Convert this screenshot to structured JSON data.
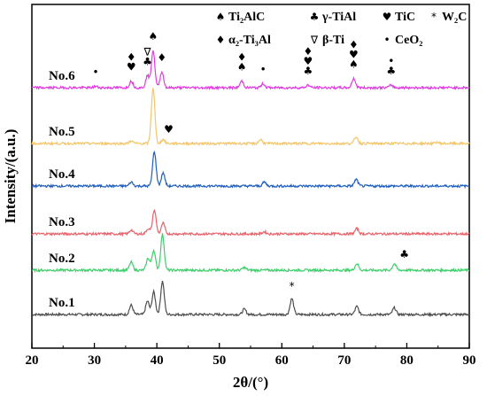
{
  "chart_data": {
    "type": "line",
    "xlabel": "2θ/(°)",
    "ylabel": "Intensity/(a.u.)",
    "xlim": [
      20,
      90
    ],
    "xticks": [
      "20",
      "30",
      "40",
      "50",
      "60",
      "70",
      "80",
      "90"
    ],
    "legend": {
      "placement": "top-right",
      "entries": [
        {
          "symbol": "♠",
          "label": "Ti₂AlC"
        },
        {
          "symbol": "♣",
          "label": "γ-TiAl"
        },
        {
          "symbol": "♥",
          "label": "TiC"
        },
        {
          "symbol": "*",
          "label": "W₂C"
        },
        {
          "symbol": "♦",
          "label": "α₂-Ti₃Al"
        },
        {
          "symbol": "∇",
          "label": "β-Ti"
        },
        {
          "symbol": "•",
          "label": "CeO₂"
        }
      ]
    },
    "series": [
      {
        "name": "No.1",
        "color": "#4d4d4d",
        "baseline": 0.0,
        "peaks": [
          [
            35.9,
            0.35
          ],
          [
            38.5,
            0.5
          ],
          [
            39.5,
            0.85
          ],
          [
            40.9,
            1.25
          ],
          [
            54.0,
            0.2
          ],
          [
            61.6,
            0.6
          ],
          [
            72.0,
            0.3
          ],
          [
            78.0,
            0.25
          ]
        ]
      },
      {
        "name": "No.2",
        "color": "#3ecf6a",
        "baseline": 1.0,
        "peaks": [
          [
            35.9,
            0.3
          ],
          [
            38.6,
            0.45
          ],
          [
            39.5,
            0.75
          ],
          [
            40.9,
            1.35
          ],
          [
            54.0,
            0.1
          ],
          [
            72.0,
            0.25
          ],
          [
            78.0,
            0.25
          ]
        ]
      },
      {
        "name": "No.3",
        "color": "#e8636b",
        "baseline": 2.0,
        "peaks": [
          [
            35.9,
            0.15
          ],
          [
            38.6,
            0.2
          ],
          [
            39.6,
            0.9
          ],
          [
            41.0,
            0.4
          ],
          [
            57.2,
            0.08
          ],
          [
            72.0,
            0.2
          ]
        ]
      },
      {
        "name": "No.4",
        "color": "#1f5fbf",
        "baseline": 3.0,
        "peaks": [
          [
            35.9,
            0.15
          ],
          [
            39.6,
            1.3
          ],
          [
            41.0,
            0.5
          ],
          [
            57.2,
            0.15
          ],
          [
            71.9,
            0.25
          ]
        ]
      },
      {
        "name": "No.5",
        "color": "#f3c66a",
        "baseline": 4.0,
        "peaks": [
          [
            35.9,
            0.1
          ],
          [
            39.4,
            2.1
          ],
          [
            41.0,
            0.15
          ],
          [
            56.6,
            0.15
          ],
          [
            71.9,
            0.25
          ],
          [
            84.8,
            0.05
          ]
        ]
      },
      {
        "name": "No.6",
        "color": "#e03be0",
        "baseline": 5.0,
        "peaks": [
          [
            30.2,
            0.05
          ],
          [
            35.9,
            0.25
          ],
          [
            38.5,
            0.45
          ],
          [
            39.4,
            1.4
          ],
          [
            40.8,
            0.6
          ],
          [
            53.6,
            0.25
          ],
          [
            57.0,
            0.15
          ],
          [
            64.2,
            0.1
          ],
          [
            71.5,
            0.35
          ],
          [
            77.5,
            0.1
          ]
        ]
      }
    ],
    "annotations": [
      {
        "symbol": "•",
        "x": 30.2,
        "series": "No.6"
      },
      {
        "symbol": "♦♥",
        "x": 35.9,
        "series": "No.6"
      },
      {
        "symbol": "∇♣",
        "x": 38.5,
        "series": "No.6"
      },
      {
        "symbol": "♠",
        "x": 39.4,
        "series": "No.6"
      },
      {
        "symbol": "♦",
        "x": 40.8,
        "series": "No.6"
      },
      {
        "symbol": "♦♠",
        "x": 53.6,
        "series": "No.6"
      },
      {
        "symbol": "•",
        "x": 57.0,
        "series": "No.6"
      },
      {
        "symbol": "♦♥♣",
        "x": 64.2,
        "series": "No.6"
      },
      {
        "symbol": "♦♥♠",
        "x": 71.5,
        "series": "No.6"
      },
      {
        "symbol": "•♣",
        "x": 77.5,
        "series": "No.6"
      },
      {
        "symbol": "♥",
        "x": 41.9,
        "series": "No.5"
      },
      {
        "symbol": "♣",
        "x": 79.6,
        "series": "No.2"
      },
      {
        "symbol": "*",
        "x": 61.6,
        "series": "No.1"
      }
    ]
  }
}
